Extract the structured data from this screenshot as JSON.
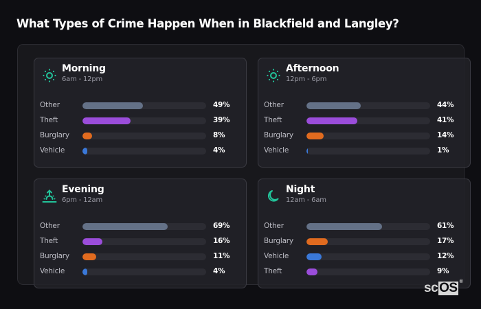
{
  "title": "What Types of Crime Happen When in Blackfield and Langley?",
  "colors": {
    "Other": "#647187",
    "Theft": "#9b4ddb",
    "Burglary": "#e16b1f",
    "Vehicle": "#3a78d8",
    "icon": "#22c39a"
  },
  "cards": [
    {
      "title": "Morning",
      "subtitle": "6am - 12pm",
      "icon": "sun-icon",
      "rows": [
        {
          "label": "Other",
          "value": 49,
          "display": "49%"
        },
        {
          "label": "Theft",
          "value": 39,
          "display": "39%"
        },
        {
          "label": "Burglary",
          "value": 8,
          "display": "8%"
        },
        {
          "label": "Vehicle",
          "value": 4,
          "display": "4%"
        }
      ]
    },
    {
      "title": "Afternoon",
      "subtitle": "12pm - 6pm",
      "icon": "sun-icon",
      "rows": [
        {
          "label": "Other",
          "value": 44,
          "display": "44%"
        },
        {
          "label": "Theft",
          "value": 41,
          "display": "41%"
        },
        {
          "label": "Burglary",
          "value": 14,
          "display": "14%"
        },
        {
          "label": "Vehicle",
          "value": 1,
          "display": "1%"
        }
      ]
    },
    {
      "title": "Evening",
      "subtitle": "6pm - 12am",
      "icon": "sunset-icon",
      "rows": [
        {
          "label": "Other",
          "value": 69,
          "display": "69%"
        },
        {
          "label": "Theft",
          "value": 16,
          "display": "16%"
        },
        {
          "label": "Burglary",
          "value": 11,
          "display": "11%"
        },
        {
          "label": "Vehicle",
          "value": 4,
          "display": "4%"
        }
      ]
    },
    {
      "title": "Night",
      "subtitle": "12am - 6am",
      "icon": "moon-icon",
      "rows": [
        {
          "label": "Other",
          "value": 61,
          "display": "61%"
        },
        {
          "label": "Burglary",
          "value": 17,
          "display": "17%"
        },
        {
          "label": "Vehicle",
          "value": 12,
          "display": "12%"
        },
        {
          "label": "Theft",
          "value": 9,
          "display": "9%"
        }
      ]
    }
  ],
  "logo": {
    "sc": "sc",
    "os": "OS",
    "reg": "®"
  },
  "chart_data": [
    {
      "type": "bar",
      "orientation": "horizontal",
      "title": "Morning",
      "subtitle": "6am - 12pm",
      "categories": [
        "Other",
        "Theft",
        "Burglary",
        "Vehicle"
      ],
      "values": [
        49,
        39,
        8,
        4
      ],
      "unit": "%",
      "xlim": [
        0,
        100
      ]
    },
    {
      "type": "bar",
      "orientation": "horizontal",
      "title": "Afternoon",
      "subtitle": "12pm - 6pm",
      "categories": [
        "Other",
        "Theft",
        "Burglary",
        "Vehicle"
      ],
      "values": [
        44,
        41,
        14,
        1
      ],
      "unit": "%",
      "xlim": [
        0,
        100
      ]
    },
    {
      "type": "bar",
      "orientation": "horizontal",
      "title": "Evening",
      "subtitle": "6pm - 12am",
      "categories": [
        "Other",
        "Theft",
        "Burglary",
        "Vehicle"
      ],
      "values": [
        69,
        16,
        11,
        4
      ],
      "unit": "%",
      "xlim": [
        0,
        100
      ]
    },
    {
      "type": "bar",
      "orientation": "horizontal",
      "title": "Night",
      "subtitle": "12am - 6am",
      "categories": [
        "Other",
        "Burglary",
        "Vehicle",
        "Theft"
      ],
      "values": [
        61,
        17,
        12,
        9
      ],
      "unit": "%",
      "xlim": [
        0,
        100
      ]
    }
  ]
}
